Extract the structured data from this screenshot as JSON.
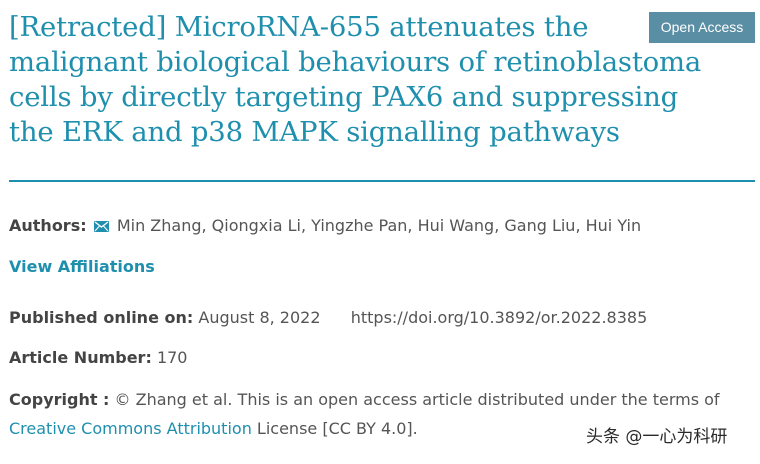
{
  "article": {
    "title": "[Retracted] MicroRNA-655 attenuates the malignant biological behaviours of retinoblastoma cells by directly targeting PAX6 and suppressing the ERK and p38 MAPK signalling pathways",
    "open_access_label": "Open Access",
    "authors_label": "Authors:",
    "authors": "Min Zhang, Qiongxia Li, Yingzhe Pan, Hui Wang, Gang Liu, Hui Yin",
    "view_affiliations": "View Affiliations",
    "published_label": "Published online on:",
    "published_date": "August 8, 2022",
    "doi": "https://doi.org/10.3892/or.2022.8385",
    "article_number_label": "Article Number:",
    "article_number": "170",
    "copyright_label": "Copyright :",
    "copyright_text": "© Zhang et al. This is an open access article distributed under the terms of",
    "license_link": "Creative Commons Attribution",
    "license_rest": "License [CC BY 4.0]."
  },
  "watermark": "头条 @一心为科研",
  "colors": {
    "accent": "#1f8fae",
    "badge": "#5a8ea4",
    "text": "#555555"
  },
  "icons": {
    "author_contact": "envelope-icon"
  }
}
